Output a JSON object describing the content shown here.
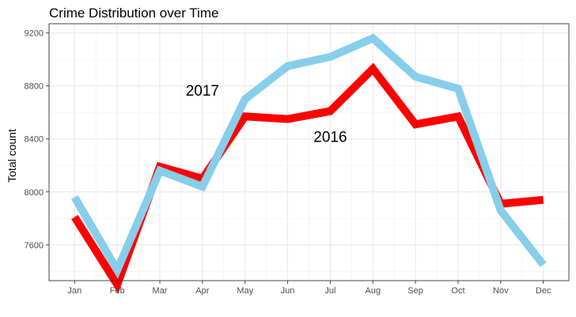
{
  "chart_data": {
    "type": "line",
    "title": "Crime Distribution over Time",
    "xlabel": "",
    "ylabel": "Total count",
    "categories": [
      "Jan",
      "Feb",
      "Mar",
      "Apr",
      "May",
      "Jun",
      "Jul",
      "Aug",
      "Sep",
      "Oct",
      "Nov",
      "Dec"
    ],
    "yticks": [
      7600,
      8000,
      8400,
      8800,
      9200
    ],
    "ylim": [
      7330,
      9270
    ],
    "grid": true,
    "series": [
      {
        "name": "2016",
        "color": "#ff0000",
        "values": [
          7810,
          7300,
          8190,
          8100,
          8570,
          8550,
          8610,
          8930,
          8510,
          8570,
          7910,
          7940
        ]
      },
      {
        "name": "2017",
        "color": "#87ceeb",
        "values": [
          7960,
          7410,
          8160,
          8040,
          8700,
          8950,
          9020,
          9160,
          8870,
          8780,
          7860,
          7450
        ]
      }
    ],
    "annotations": [
      {
        "text": "2017",
        "x": "Apr",
        "y": 8770
      },
      {
        "text": "2016",
        "x": "Jul",
        "y": 8420
      }
    ]
  }
}
